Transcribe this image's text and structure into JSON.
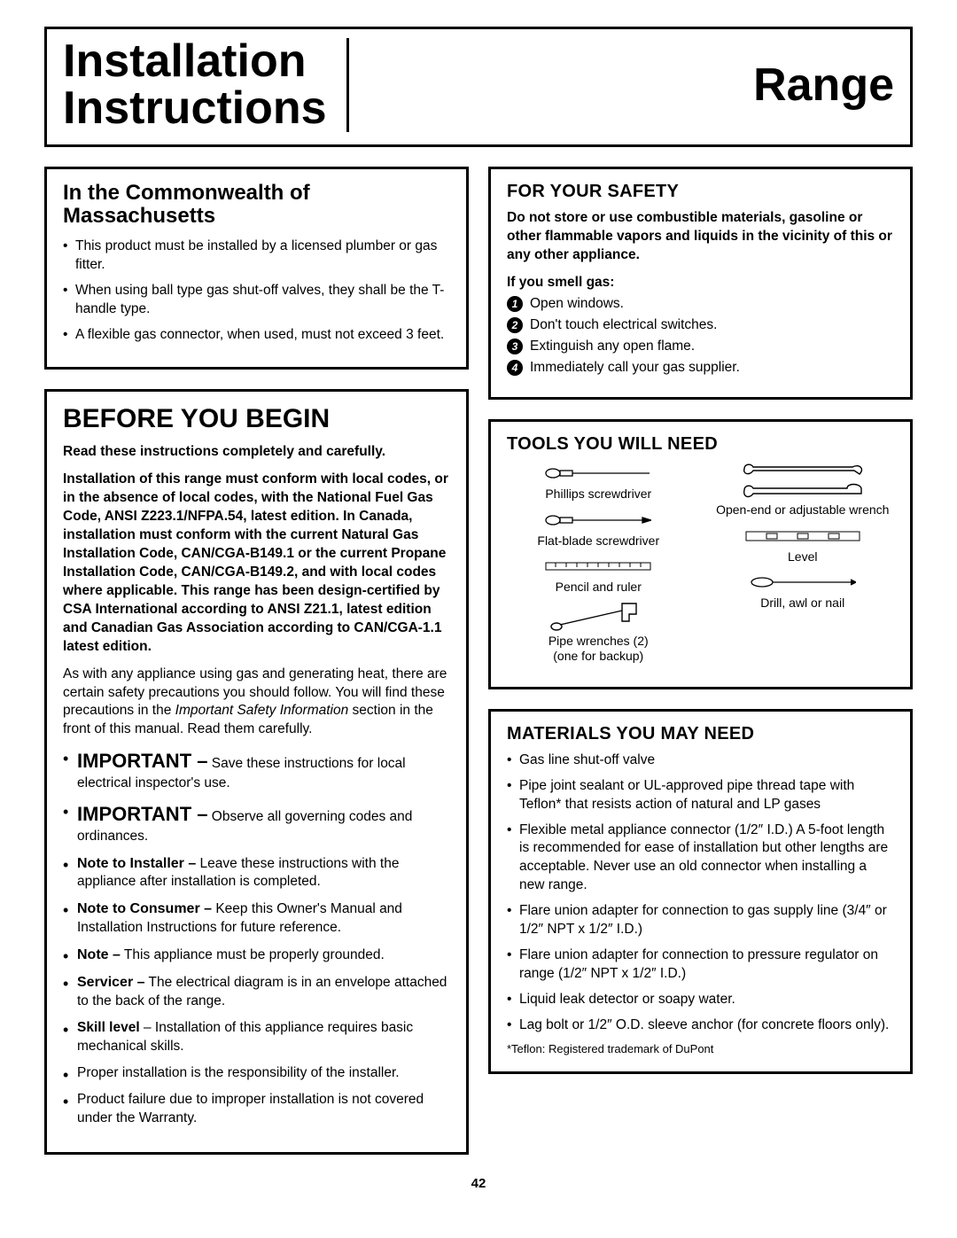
{
  "header": {
    "left": "Installation\nInstructions",
    "right": "Range"
  },
  "left_col": {
    "mass": {
      "title": "In the Commonwealth of Massachusetts",
      "items": [
        "This product must be installed by a licensed plumber or gas fitter.",
        "When using ball type gas shut-off valves, they shall be the T-handle type.",
        "A flexible gas connector, when used, must not exceed 3 feet."
      ]
    },
    "begin": {
      "title": "BEFORE YOU BEGIN",
      "lead_bold": "Read these instructions completely and carefully.",
      "para_bold": "Installation of this range must conform with local codes, or in the absence of local codes, with the National Fuel Gas Code, ANSI Z223.1/NFPA.54, latest edition. In Canada, installation must conform with the current Natural Gas Installation Code, CAN/CGA-B149.1 or the current Propane Installation Code, CAN/CGA-B149.2, and with local codes where applicable. This range has been design-certified by CSA International according to ANSI Z21.1, latest edition and Canadian Gas Association according to CAN/CGA-1.1 latest edition.",
      "para_after_a": "As with any appliance using gas and generating heat, there are certain safety precautions you should follow. You will find these precautions in the ",
      "para_after_italic": "Important Safety Information",
      "para_after_b": " section in the front of this manual. Read them carefully.",
      "notes": [
        {
          "lead": "IMPORTANT –",
          "lead_class": "important-word",
          "text": " Save these instructions for local electrical inspector's use."
        },
        {
          "lead": "IMPORTANT –",
          "lead_class": "important-word",
          "text": " Observe all governing codes and ordinances."
        },
        {
          "lead": "Note to Installer –",
          "lead_class": "note-lead",
          "text": " Leave these instructions with the appliance after installation is completed."
        },
        {
          "lead": "Note to Consumer –",
          "lead_class": "note-lead",
          "text": " Keep this Owner's Manual and Installation Instructions for future reference."
        },
        {
          "lead": "Note –",
          "lead_class": "note-lead",
          "text": " This appliance must be properly grounded."
        },
        {
          "lead": "Servicer –",
          "lead_class": "note-lead",
          "text": " The electrical diagram is in an envelope attached to the back of the range."
        },
        {
          "lead": "Skill level",
          "lead_class": "bold",
          "text": " – Installation of this appliance requires basic mechanical skills."
        },
        {
          "lead": "",
          "lead_class": "",
          "text": "Proper installation is the responsibility of the installer."
        },
        {
          "lead": "",
          "lead_class": "",
          "text": "Product failure due to improper installation is not covered under the Warranty."
        }
      ]
    }
  },
  "right_col": {
    "safety": {
      "title": "FOR YOUR SAFETY",
      "warn": "Do not store or use combustible materials, gasoline or other flammable vapors and liquids in the vicinity of this or any other appliance.",
      "smell_label": "If you smell gas:",
      "steps": [
        "Open windows.",
        "Don't touch electrical switches.",
        "Extinguish any open flame.",
        "Immediately call your gas supplier."
      ]
    },
    "tools": {
      "title": "TOOLS YOU WILL NEED",
      "left": [
        "Phillips screwdriver",
        "Flat-blade screwdriver",
        "Pencil and ruler",
        "Pipe wrenches (2)\n(one for backup)"
      ],
      "right": [
        "",
        "Open-end or adjustable wrench",
        "Level",
        "Drill, awl or nail"
      ]
    },
    "materials": {
      "title": "MATERIALS YOU MAY NEED",
      "items": [
        "Gas line shut-off valve",
        "Pipe joint sealant or UL-approved pipe thread tape with Teflon* that resists action of natural and LP gases",
        "Flexible metal appliance connector (1/2″ I.D.) A 5-foot length is recommended for ease of installation but other lengths are acceptable. Never use an old connector when installing a new range.",
        "Flare union adapter for connection to gas supply line (3/4″ or 1/2″ NPT x 1/2″ I.D.)",
        "Flare union adapter for connection to pressure regulator on range (1/2″ NPT x 1/2″ I.D.)",
        "Liquid leak detector or soapy water.",
        "Lag bolt or 1/2″ O.D. sleeve anchor (for concrete floors only)."
      ],
      "footnote": "*Teflon: Registered trademark of DuPont"
    }
  },
  "page_number": "42"
}
